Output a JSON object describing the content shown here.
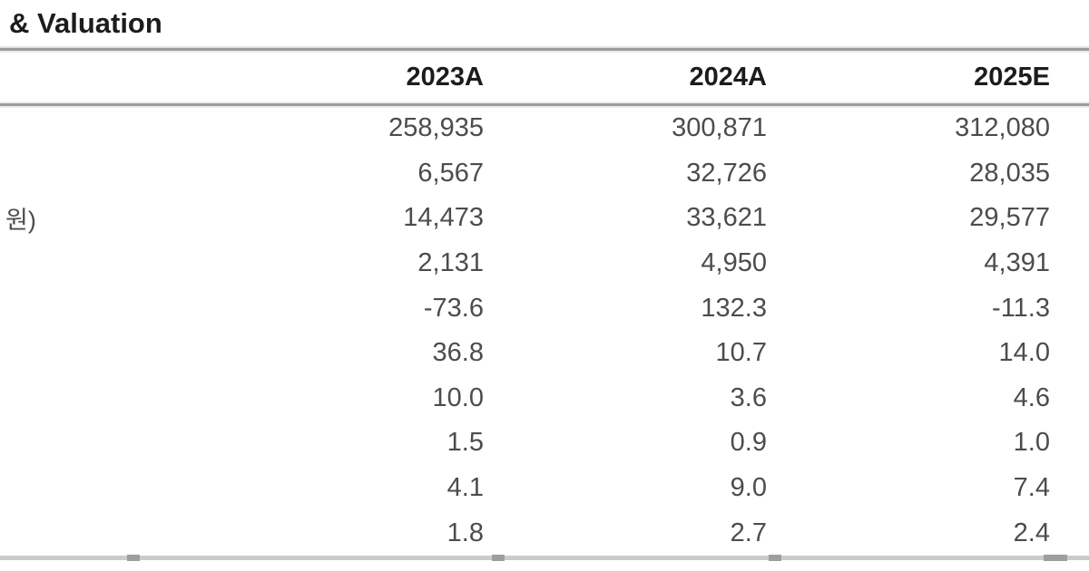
{
  "title": "& Valuation",
  "table": {
    "label_header": "",
    "columns": [
      "2023A",
      "2024A",
      "2025E"
    ],
    "rows": [
      {
        "label": "",
        "values": [
          "258,935",
          "300,871",
          "312,080"
        ]
      },
      {
        "label": "",
        "values": [
          "6,567",
          "32,726",
          "28,035"
        ]
      },
      {
        "label": "원)",
        "values": [
          "14,473",
          "33,621",
          "29,577"
        ]
      },
      {
        "label": "",
        "values": [
          "2,131",
          "4,950",
          "4,391"
        ]
      },
      {
        "label": "",
        "values": [
          "-73.6",
          "132.3",
          "-11.3"
        ]
      },
      {
        "label": "",
        "values": [
          "36.8",
          "10.7",
          "14.0"
        ]
      },
      {
        "label": "",
        "values": [
          "10.0",
          "3.6",
          "4.6"
        ]
      },
      {
        "label": "",
        "values": [
          "1.5",
          "0.9",
          "1.0"
        ]
      },
      {
        "label": "",
        "values": [
          "4.1",
          "9.0",
          "7.4"
        ]
      },
      {
        "label": "",
        "values": [
          "1.8",
          "2.7",
          "2.4"
        ]
      }
    ]
  },
  "colors": {
    "rule_gray": "#9b9b9b",
    "bottom_rule_gray": "#cbcbcb",
    "notch_gray": "#9e9e9e",
    "heading_text": "#1c1c1c",
    "number_text": "#4c4c4c",
    "background": "#ffffff"
  }
}
